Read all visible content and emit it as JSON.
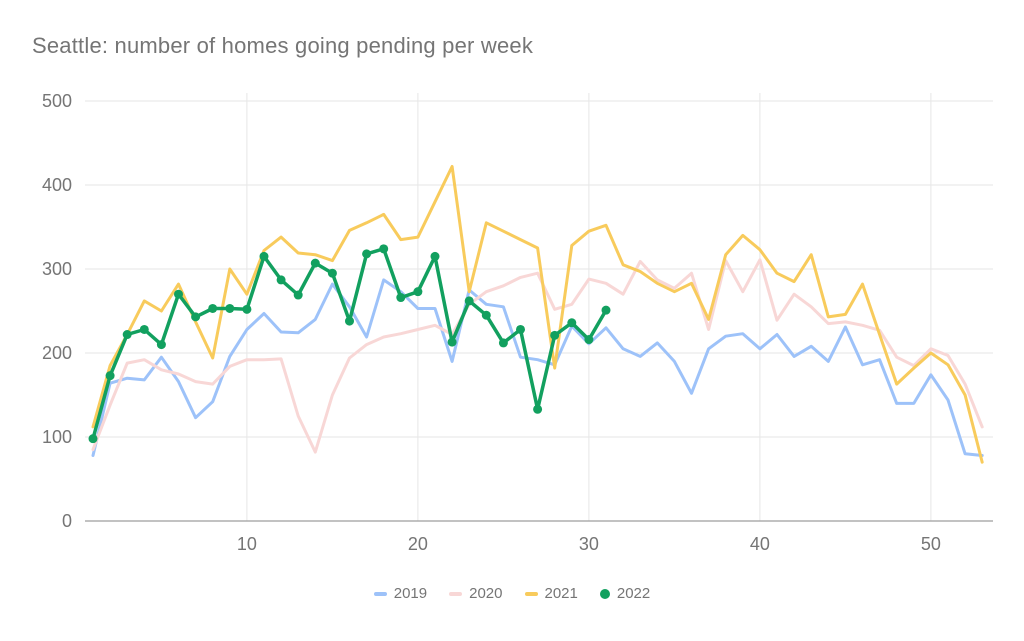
{
  "title": "Seattle: number of homes going pending per week",
  "colors": {
    "title_text": "#757575",
    "tick_text": "#757575",
    "gridline": "#e6e6e6",
    "axis_line": "#9e9e9e",
    "background": "#ffffff"
  },
  "chart_data": {
    "type": "line",
    "title": "Seattle: number of homes going pending per week",
    "xlabel": "",
    "ylabel": "",
    "xlim": [
      1,
      53
    ],
    "ylim": [
      0,
      500
    ],
    "x_ticks": [
      10,
      20,
      30,
      40,
      50
    ],
    "y_ticks": [
      0,
      100,
      200,
      300,
      400,
      500
    ],
    "grid": true,
    "legend_position": "bottom",
    "x_unit": "week number",
    "series": [
      {
        "name": "2019",
        "color": "#9DC2F9",
        "marker": "none",
        "values": [
          78,
          164,
          170,
          168,
          195,
          166,
          123,
          142,
          196,
          228,
          247,
          225,
          224,
          240,
          282,
          255,
          219,
          287,
          273,
          253,
          253,
          190,
          275,
          258,
          255,
          195,
          192,
          186,
          232,
          211,
          230,
          205,
          196,
          212,
          190,
          152,
          205,
          220,
          223,
          205,
          222,
          196,
          208,
          190,
          231,
          186,
          192,
          140,
          140,
          174,
          144,
          80,
          78
        ]
      },
      {
        "name": "2020",
        "color": "#F8D7D6",
        "marker": "none",
        "values": [
          85,
          138,
          188,
          192,
          180,
          175,
          166,
          163,
          184,
          192,
          192,
          193,
          125,
          82,
          150,
          194,
          210,
          219,
          223,
          228,
          233,
          222,
          258,
          273,
          280,
          290,
          295,
          252,
          258,
          288,
          283,
          270,
          309,
          287,
          277,
          295,
          228,
          310,
          273,
          311,
          239,
          270,
          255,
          235,
          237,
          233,
          227,
          195,
          185,
          205,
          197,
          163,
          112
        ]
      },
      {
        "name": "2021",
        "color": "#F8CB5C",
        "marker": "none",
        "values": [
          112,
          185,
          222,
          262,
          250,
          282,
          237,
          194,
          300,
          270,
          322,
          338,
          319,
          317,
          310,
          346,
          355,
          365,
          335,
          338,
          380,
          422,
          273,
          355,
          345,
          335,
          325,
          182,
          328,
          345,
          352,
          305,
          297,
          283,
          273,
          283,
          240,
          317,
          340,
          323,
          295,
          285,
          317,
          243,
          246,
          282,
          222,
          163,
          182,
          200,
          186,
          150,
          70
        ]
      },
      {
        "name": "2022",
        "color": "#12A05F",
        "marker": "circle",
        "values": [
          98,
          173,
          222,
          228,
          210,
          270,
          243,
          253,
          253,
          252,
          315,
          287,
          269,
          307,
          295,
          238,
          318,
          324,
          266,
          273,
          315,
          213,
          262,
          245,
          212,
          228,
          133,
          221,
          236,
          216,
          251
        ]
      }
    ]
  }
}
